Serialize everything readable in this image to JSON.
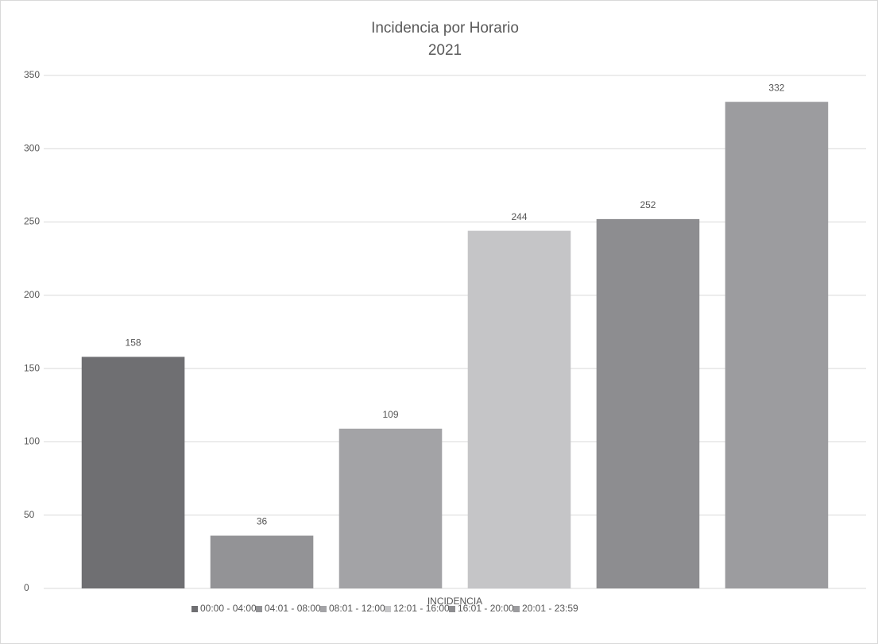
{
  "chart_data": {
    "type": "bar",
    "title": "Incidencia por Horario",
    "subtitle": "2021",
    "categories": [
      "INCIDENCIA"
    ],
    "series": [
      {
        "name": "00:00 - 04:00",
        "color": "#6f6f72",
        "values": [
          158
        ]
      },
      {
        "name": "04:01 - 08:00",
        "color": "#939396",
        "values": [
          36
        ]
      },
      {
        "name": "08:01 - 12:00",
        "color": "#a3a3a6",
        "values": [
          109
        ]
      },
      {
        "name": "12:01 - 16:00",
        "color": "#c5c5c7",
        "values": [
          244
        ]
      },
      {
        "name": "16:01 - 20:00",
        "color": "#8d8d90",
        "values": [
          252
        ]
      },
      {
        "name": "20:01 - 23:59",
        "color": "#9c9c9f",
        "values": [
          332
        ]
      }
    ],
    "ylim": [
      0,
      350
    ],
    "yticks": [
      0,
      50,
      100,
      150,
      200,
      250,
      300,
      350
    ],
    "grid": true,
    "legend": "bottom"
  }
}
